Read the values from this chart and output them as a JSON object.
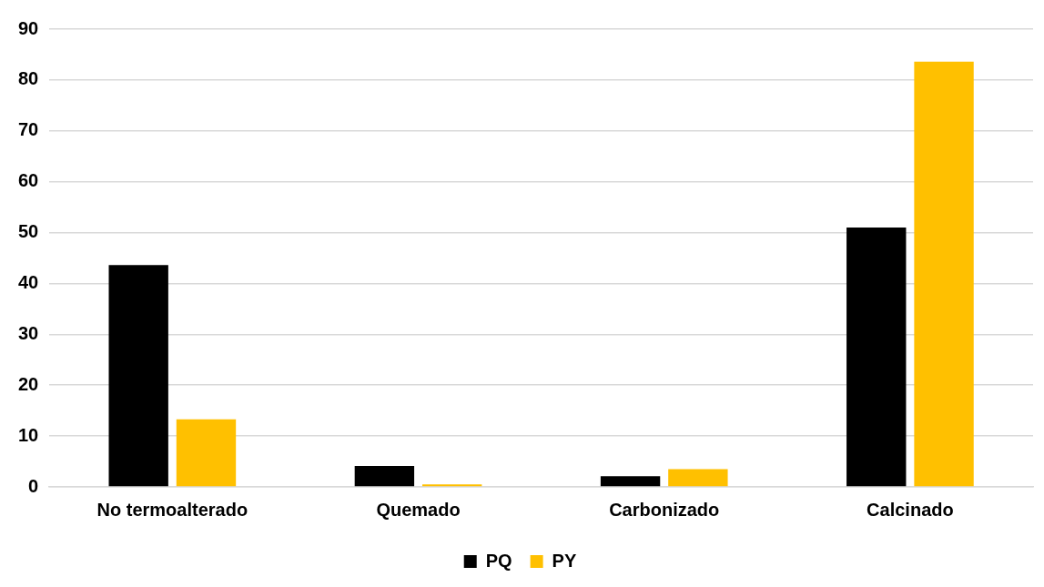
{
  "chart_data": {
    "type": "bar",
    "categories": [
      "No termoalterado",
      "Quemado",
      "Carbonizado",
      "Calcinado"
    ],
    "series": [
      {
        "name": "PQ",
        "color": "#000000",
        "values": [
          43.6,
          4.1,
          2.1,
          51
        ]
      },
      {
        "name": "PY",
        "color": "#ffc000",
        "values": [
          13.3,
          0.5,
          3.5,
          83.6
        ]
      }
    ],
    "ylim": [
      0,
      90
    ],
    "yticks": [
      0,
      10,
      20,
      30,
      40,
      50,
      60,
      70,
      80,
      90
    ],
    "grid": "y",
    "legend": "bottom"
  }
}
